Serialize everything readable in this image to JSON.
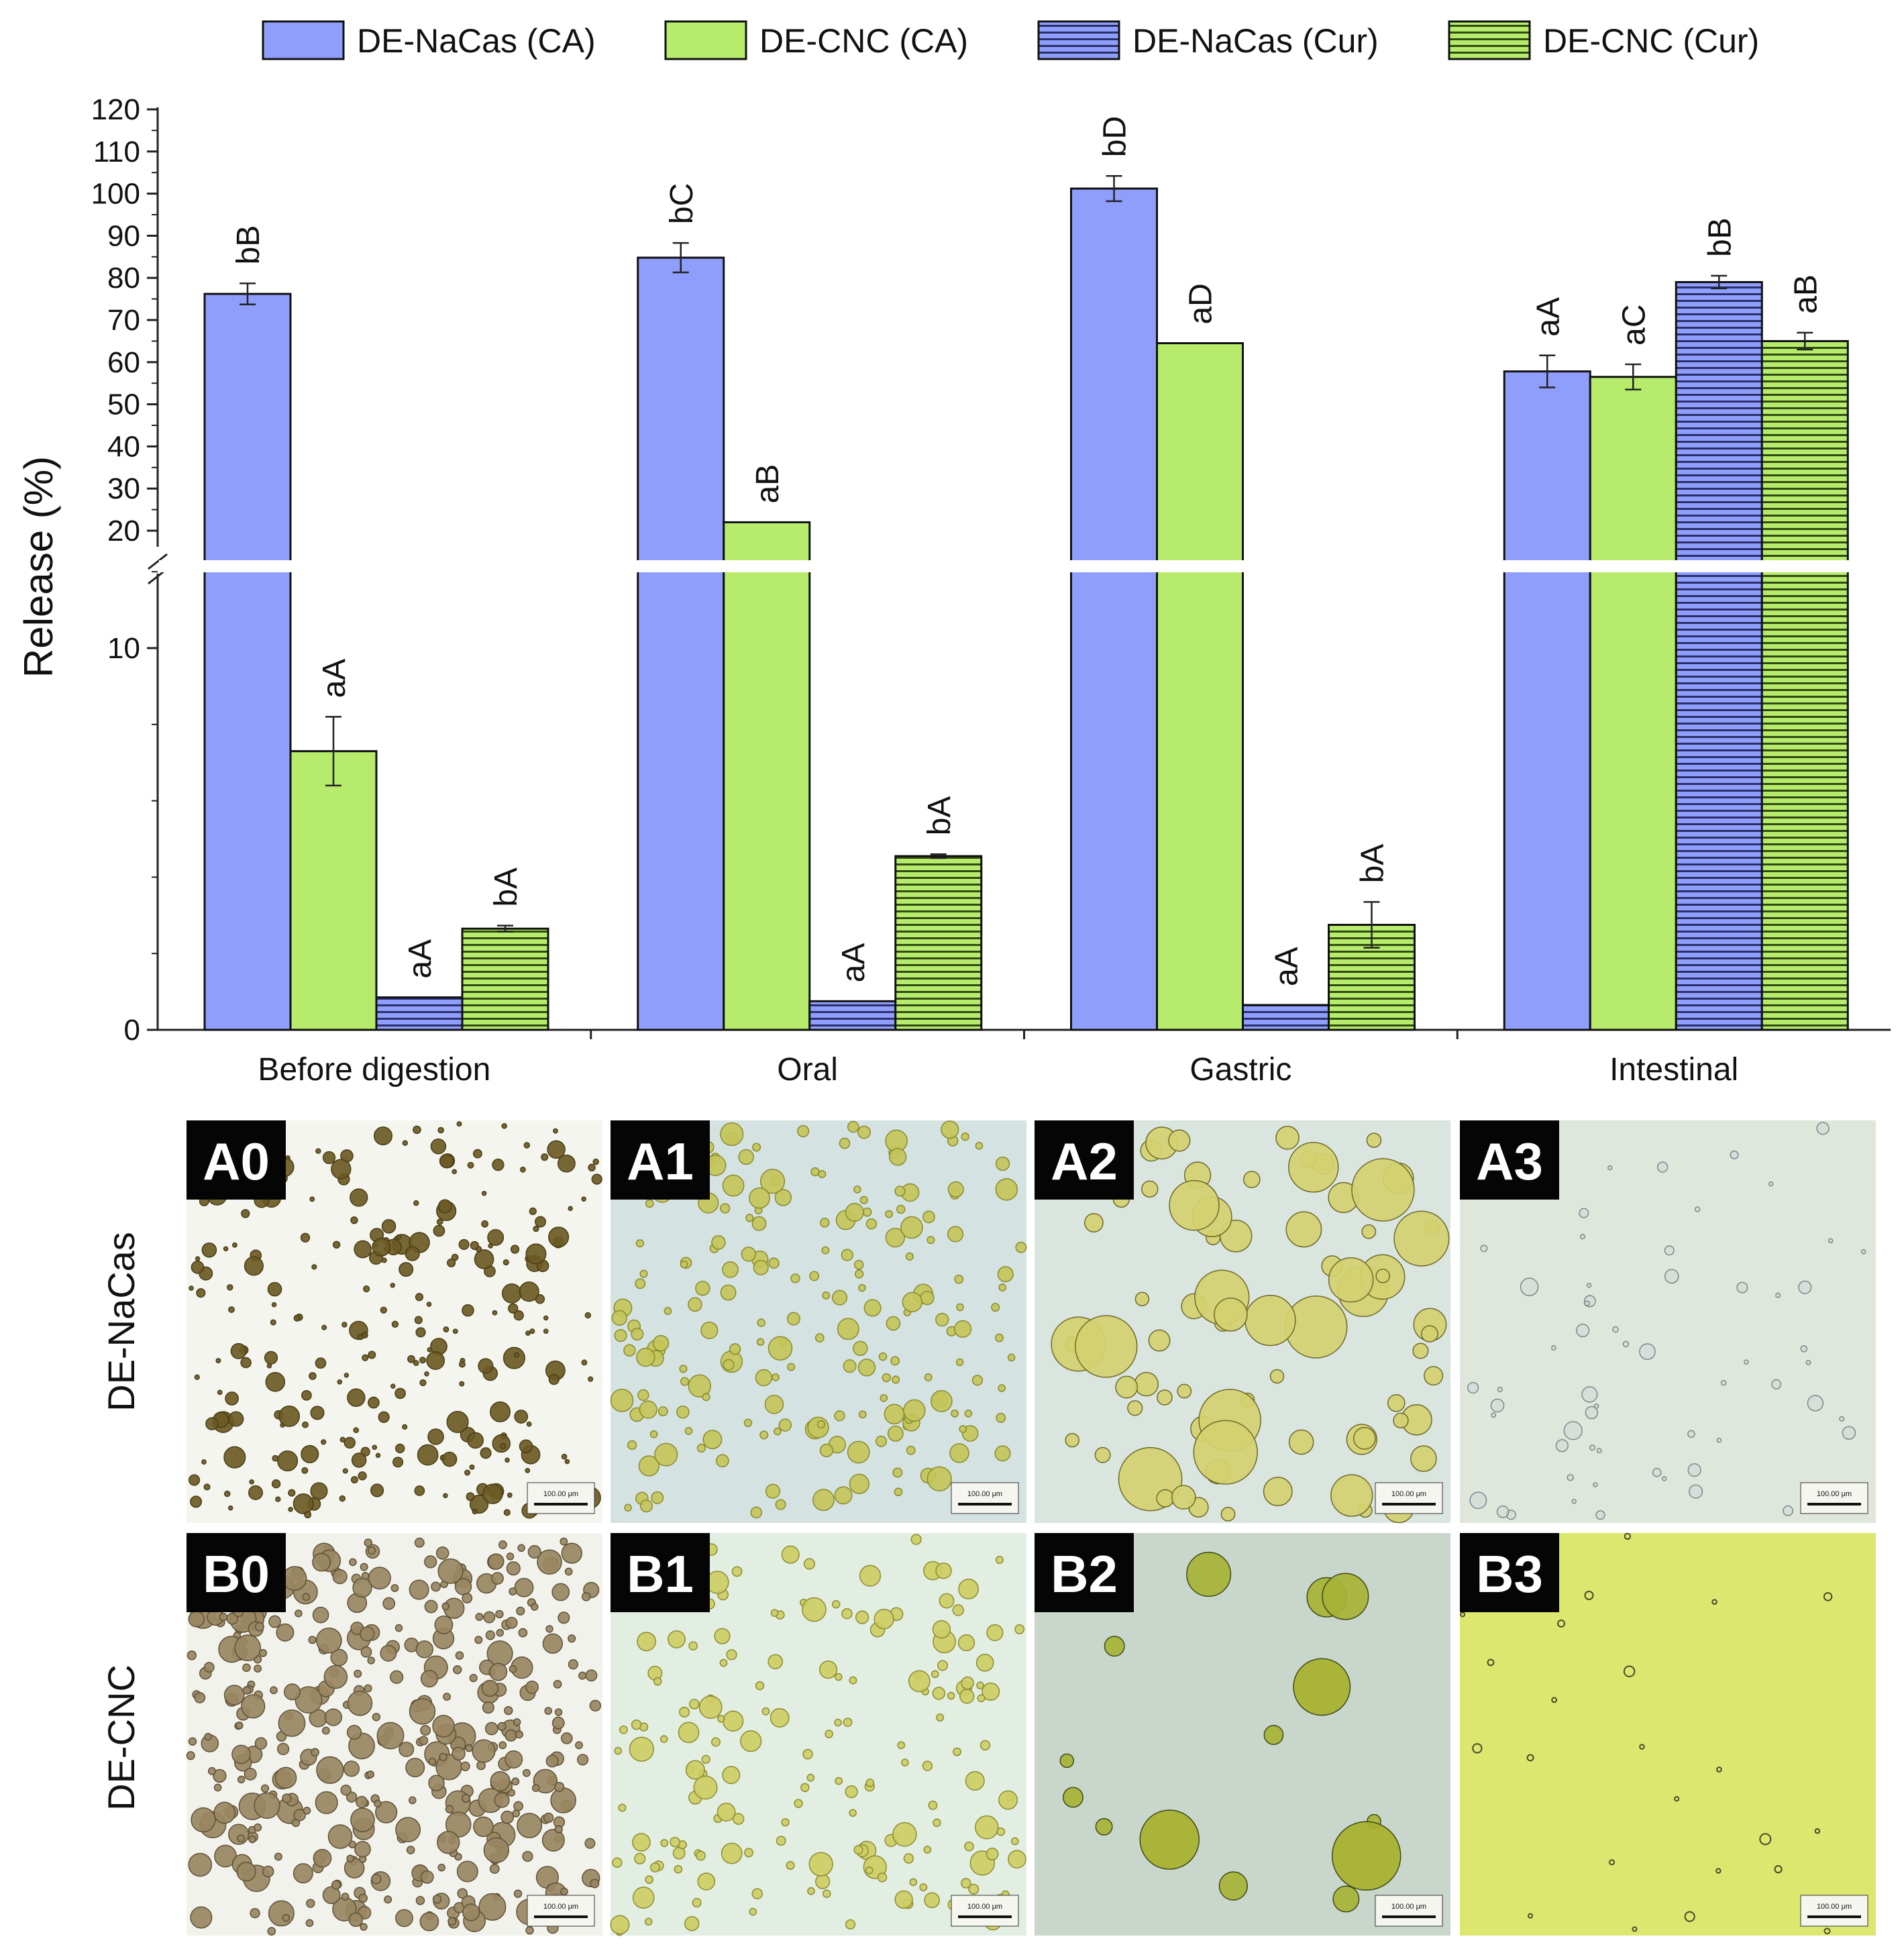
{
  "chart_data": {
    "type": "bar",
    "ylabel": "Release (%)",
    "xlabel": "",
    "axis_break": {
      "lower": [
        0,
        12
      ],
      "upper": [
        12,
        120
      ]
    },
    "y_ticks_lower": [
      0,
      10
    ],
    "y_ticks_upper": [
      20,
      30,
      40,
      50,
      60,
      70,
      80,
      90,
      100,
      110,
      120
    ],
    "categories": [
      "Before digestion",
      "Oral",
      "Gastric",
      "Intestinal"
    ],
    "legend_position": "top",
    "series": [
      {
        "name": "DE-NaCas (CA)",
        "color": "#8f9efa",
        "pattern": "solid",
        "values": [
          76.2,
          84.8,
          101.2,
          57.8
        ],
        "errors": [
          2.5,
          3.5,
          3.0,
          3.8
        ],
        "letters": [
          "bB",
          "bC",
          "bD",
          "aA"
        ]
      },
      {
        "name": "DE-CNC (CA)",
        "color": "#b7eb6c",
        "pattern": "solid",
        "values": [
          7.3,
          22.0,
          64.5,
          56.5
        ],
        "errors": [
          0.9,
          0.0,
          0.0,
          3.0
        ],
        "letters": [
          "aA",
          "aB",
          "aD",
          "aC"
        ]
      },
      {
        "name": "DE-NaCas (Cur)",
        "color": "#8f9efa",
        "pattern": "hatch",
        "values": [
          0.85,
          0.75,
          0.65,
          79.0
        ],
        "errors": [
          0.0,
          0.0,
          0.0,
          1.5
        ],
        "letters": [
          "aA",
          "aA",
          "aA",
          "bB"
        ]
      },
      {
        "name": "DE-CNC (Cur)",
        "color": "#b7eb6c",
        "pattern": "hatch",
        "values": [
          2.65,
          4.55,
          2.75,
          65.0
        ],
        "errors": [
          0.08,
          0.05,
          0.6,
          2.0
        ],
        "letters": [
          "bA",
          "bA",
          "bA",
          "aB"
        ]
      }
    ]
  },
  "micrographs": {
    "row_labels": [
      "DE-NaCas",
      "DE-CNC"
    ],
    "scale_bar_text": "100.00 μm",
    "panels": [
      {
        "tag": "A0",
        "bg": "#f3f5ee",
        "drop": "#6d5a24",
        "edge": "#4a3c16"
      },
      {
        "tag": "A1",
        "bg": "#d5e2e2",
        "drop": "#c3c55a",
        "edge": "#8a8a2e"
      },
      {
        "tag": "A2",
        "bg": "#dae5df",
        "drop": "#d4d170",
        "edge": "#6e6a2a"
      },
      {
        "tag": "A3",
        "bg": "#dfe6dc",
        "drop": "#ccd7d7",
        "edge": "#7c8a86"
      },
      {
        "tag": "B0",
        "bg": "#f2f2ec",
        "drop": "#998762",
        "edge": "#5f5238"
      },
      {
        "tag": "B1",
        "bg": "#e1eee1",
        "drop": "#cdcd64",
        "edge": "#8e8c32"
      },
      {
        "tag": "B2",
        "bg": "#c9d6cc",
        "drop": "#a6b335",
        "edge": "#3f4a16"
      },
      {
        "tag": "B3",
        "bg": "#dce76f",
        "drop": "#d6e16a",
        "edge": "#4a4a2a"
      }
    ]
  }
}
